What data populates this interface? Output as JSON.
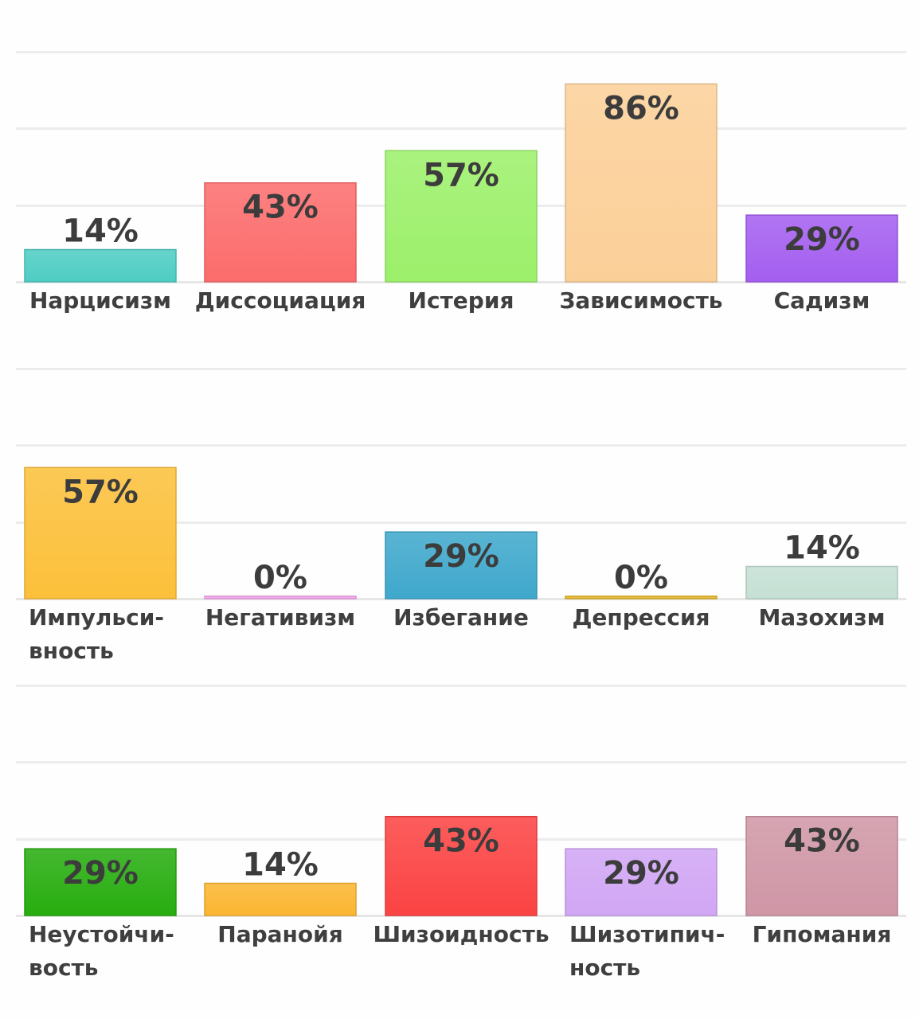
{
  "chart_data": [
    {
      "type": "bar",
      "categories": [
        "Нарцисизм",
        "Диссоциация",
        "Истерия",
        "Зависимость",
        "Садизм"
      ],
      "values": [
        14,
        43,
        57,
        86,
        29
      ],
      "value_labels": [
        "14%",
        "43%",
        "57%",
        "86%",
        "29%"
      ],
      "colors": [
        "#4ecdc4",
        "#fc6c6c",
        "#9cf06a",
        "#fbcf98",
        "#a45ef0"
      ],
      "ylim": [
        0,
        100
      ],
      "grid": true
    },
    {
      "type": "bar",
      "categories": [
        "Импульси-\nвность",
        "Негативизм",
        "Избегание",
        "Депрессия",
        "Мазохизм"
      ],
      "values": [
        57,
        0,
        29,
        0,
        14
      ],
      "value_labels": [
        "57%",
        "0%",
        "29%",
        "0%",
        "14%"
      ],
      "colors": [
        "#fcc03a",
        "#f7a5ee",
        "#3fa8cc",
        "#e6b82a",
        "#c5e0d4"
      ],
      "ylim": [
        0,
        100
      ],
      "grid": true
    },
    {
      "type": "bar",
      "categories": [
        "Неустойчи-\nвость",
        "Паранойя",
        "Шизоидность",
        "Шизотипич-\nность",
        "Гипомания"
      ],
      "values": [
        29,
        14,
        43,
        29,
        43
      ],
      "value_labels": [
        "29%",
        "14%",
        "43%",
        "29%",
        "43%"
      ],
      "colors": [
        "#27ad0f",
        "#fbb630",
        "#fb4343",
        "#d1a6f4",
        "#cf96a6"
      ],
      "ylim": [
        0,
        100
      ],
      "grid": true
    }
  ]
}
